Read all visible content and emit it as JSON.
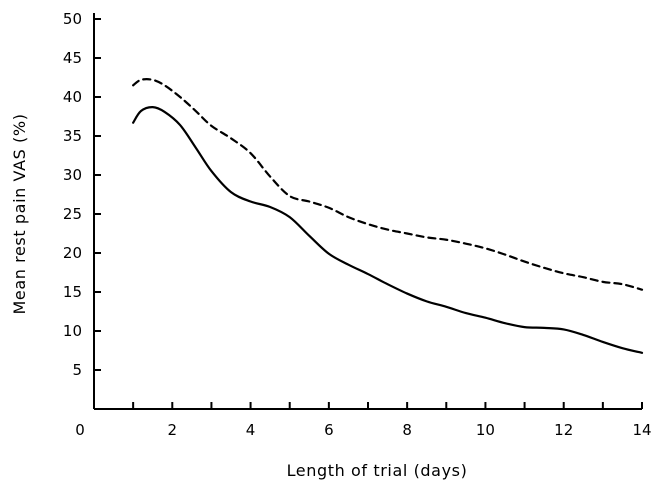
{
  "chart_data": {
    "type": "line",
    "title": "",
    "xlabel": "Length of trial (days)",
    "ylabel": "Mean rest pain VAS (%)",
    "xlim": [
      0,
      14
    ],
    "ylim": [
      0,
      50
    ],
    "x_ticks": [
      0,
      1,
      2,
      3,
      4,
      5,
      6,
      7,
      8,
      9,
      10,
      11,
      12,
      13,
      14
    ],
    "x_tick_labels": [
      "0",
      "",
      "2",
      "",
      "4",
      "",
      "6",
      "",
      "8",
      "",
      "10",
      "",
      "12",
      "",
      "14"
    ],
    "y_ticks": [
      0,
      5,
      10,
      15,
      20,
      25,
      30,
      35,
      40,
      45,
      50
    ],
    "y_tick_labels": [
      "",
      "5",
      "10",
      "15",
      "20",
      "25",
      "30",
      "35",
      "40",
      "45",
      "50"
    ],
    "grid": false,
    "legend": "none",
    "series": [
      {
        "style": "dashed",
        "x": [
          1,
          1.2,
          1.5,
          1.8,
          2.2,
          2.6,
          3,
          3.5,
          4,
          4.5,
          5,
          5.5,
          6,
          6.5,
          7,
          7.5,
          8,
          8.5,
          9,
          9.5,
          10,
          10.5,
          11,
          11.5,
          12,
          12.5,
          13,
          13.5,
          14
        ],
        "y": [
          41.5,
          42.2,
          42.2,
          41.5,
          40,
          38.2,
          36.3,
          34.7,
          32.8,
          29.8,
          27.3,
          26.6,
          25.8,
          24.6,
          23.7,
          23,
          22.5,
          22,
          21.7,
          21.2,
          20.6,
          19.8,
          18.9,
          18.1,
          17.4,
          16.9,
          16.3,
          16,
          15.3
        ]
      },
      {
        "style": "solid",
        "x": [
          1,
          1.2,
          1.5,
          1.8,
          2.2,
          2.6,
          3,
          3.5,
          4,
          4.5,
          5,
          5.5,
          6,
          6.5,
          7,
          7.5,
          8,
          8.5,
          9,
          9.5,
          10,
          10.5,
          11,
          11.5,
          12,
          12.5,
          13,
          13.5,
          14
        ],
        "y": [
          36.7,
          38.2,
          38.7,
          38.1,
          36.4,
          33.5,
          30.5,
          27.8,
          26.6,
          25.9,
          24.6,
          22.2,
          19.9,
          18.5,
          17.3,
          16,
          14.8,
          13.8,
          13.1,
          12.3,
          11.7,
          11,
          10.5,
          10.4,
          10.2,
          9.5,
          8.6,
          7.8,
          7.2
        ]
      }
    ]
  }
}
